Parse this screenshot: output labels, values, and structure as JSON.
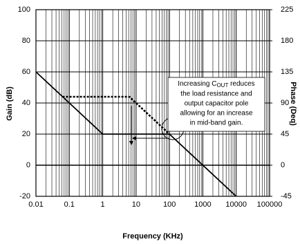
{
  "chart_data": {
    "type": "line",
    "x_label": "Frequency (KHz)",
    "y_label": "Gain (dB)",
    "y2_label": "Phase (Deq)",
    "xscale": "log",
    "grid": true,
    "xlim": [
      0.01,
      100000
    ],
    "xticks": [
      0.01,
      0.1,
      1,
      10,
      100,
      1000,
      10000,
      100000
    ],
    "ylim": [
      -20,
      100
    ],
    "yticks": [
      -20,
      0,
      20,
      40,
      60,
      80,
      100
    ],
    "y2lim": [
      -45,
      225
    ],
    "y2ticks": [
      -45,
      0,
      45,
      90,
      135,
      180,
      225
    ],
    "series": [
      {
        "color": "#000000",
        "dashed": false,
        "x": [
          0.01,
          1,
          100,
          10000
        ],
        "values": [
          60,
          20,
          20,
          -20
        ]
      },
      {
        "color": "#000000",
        "dashed": true,
        "x": [
          0.063,
          6.3,
          100
        ],
        "values": [
          44,
          44,
          20
        ]
      }
    ],
    "annotation": {
      "prefix": "Increasing C",
      "subscript": "OUT",
      "suffix": " reduces",
      "lines": [
        "the  load resistance and",
        "output capacitor pole",
        "allowing for an increase",
        "in mid-band gain."
      ]
    }
  }
}
